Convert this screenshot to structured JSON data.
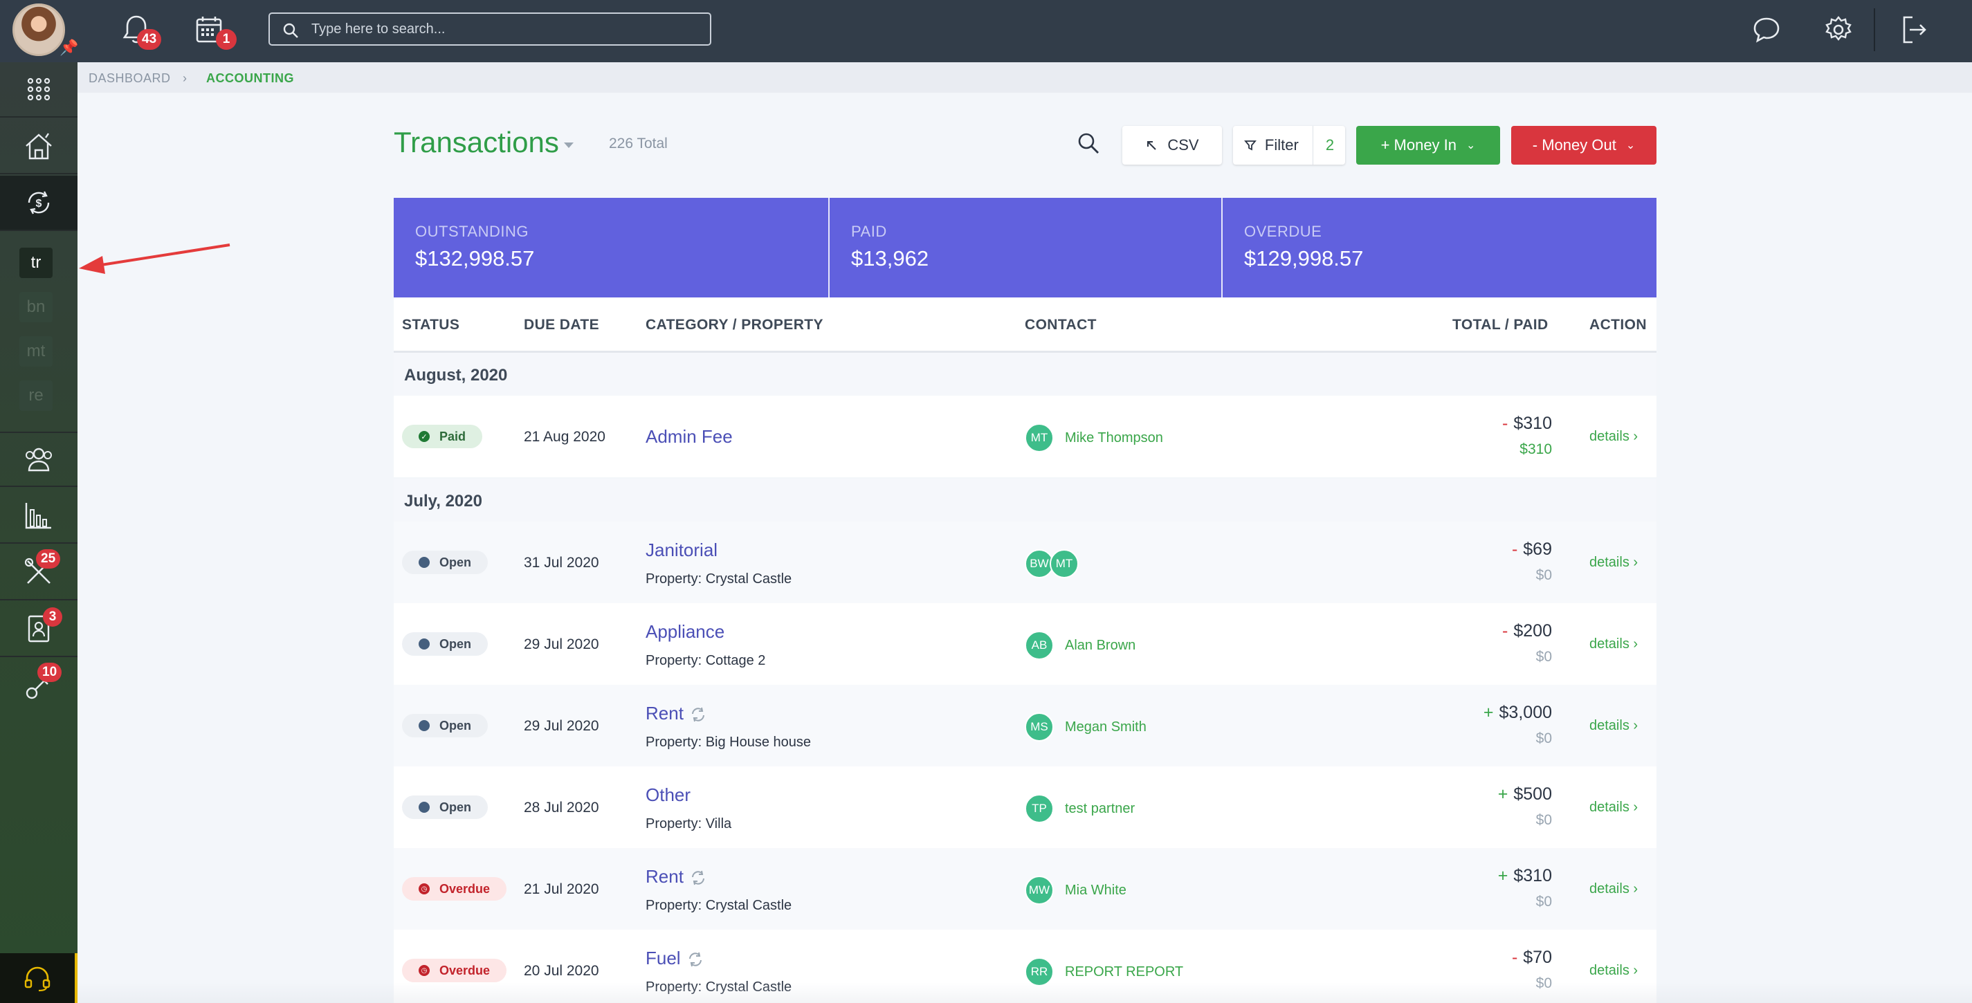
{
  "topbar": {
    "notifications_badge": "43",
    "calendar_badge": "1",
    "search_placeholder": "Type here to search..."
  },
  "sidebar": {
    "sub_items": [
      "tr",
      "bn",
      "mt",
      "re"
    ],
    "badges": {
      "tools": "25",
      "contacts": "3",
      "keys": "10"
    }
  },
  "breadcrumb": {
    "root": "DASHBOARD",
    "current": "ACCOUNTING"
  },
  "header": {
    "title": "Transactions",
    "total": "226 Total",
    "csv_label": "CSV",
    "filter_label": "Filter",
    "filter_count": "2",
    "money_in_label": "+ Money In",
    "money_out_label": "- Money Out"
  },
  "summary": {
    "outstanding_label": "OUTSTANDING",
    "outstanding_value": "$132,998.57",
    "paid_label": "PAID",
    "paid_value": "$13,962",
    "overdue_label": "OVERDUE",
    "overdue_value": "$129,998.57"
  },
  "table": {
    "columns": {
      "status": "STATUS",
      "due": "DUE DATE",
      "category": "CATEGORY / PROPERTY",
      "contact": "CONTACT",
      "total": "TOTAL / PAID",
      "action": "ACTION"
    },
    "groups": [
      "August, 2020",
      "July, 2020"
    ],
    "rows": [
      {
        "status": "Paid",
        "due": "21 Aug 2020",
        "category": "Admin Fee",
        "property": "",
        "contacts": [
          "MT"
        ],
        "contact_name": "Mike Thompson",
        "sign": "-",
        "total": "$310",
        "paid": "$310",
        "action": "details"
      },
      {
        "status": "Open",
        "due": "31 Jul 2020",
        "category": "Janitorial",
        "property": "Property: Crystal Castle",
        "contacts": [
          "BW",
          "MT"
        ],
        "contact_name": "",
        "sign": "-",
        "total": "$69",
        "paid": "$0",
        "action": "details"
      },
      {
        "status": "Open",
        "due": "29 Jul 2020",
        "category": "Appliance",
        "property": "Property: Cottage 2",
        "contacts": [
          "AB"
        ],
        "contact_name": "Alan Brown",
        "sign": "-",
        "total": "$200",
        "paid": "$0",
        "action": "details"
      },
      {
        "status": "Open",
        "due": "29 Jul 2020",
        "category": "Rent",
        "property": "Property: Big House house",
        "contacts": [
          "MS"
        ],
        "contact_name": "Megan Smith",
        "sign": "+",
        "total": "$3,000",
        "paid": "$0",
        "action": "details"
      },
      {
        "status": "Open",
        "due": "28 Jul 2020",
        "category": "Other",
        "property": "Property: Villa",
        "contacts": [
          "TP"
        ],
        "contact_name": "test partner",
        "sign": "+",
        "total": "$500",
        "paid": "$0",
        "action": "details"
      },
      {
        "status": "Overdue",
        "due": "21 Jul 2020",
        "category": "Rent",
        "property": "Property: Crystal Castle",
        "contacts": [
          "MW"
        ],
        "contact_name": "Mia White",
        "sign": "+",
        "total": "$310",
        "paid": "$0",
        "action": "details"
      },
      {
        "status": "Overdue",
        "due": "20 Jul 2020",
        "category": "Fuel",
        "property": "Property: Crystal Castle",
        "contacts": [
          "RR"
        ],
        "contact_name": "REPORT REPORT",
        "sign": "-",
        "total": "$70",
        "paid": "$0",
        "action": "details"
      }
    ]
  },
  "colors": {
    "accent_green": "#3aa64a",
    "accent_red": "#d9363e",
    "summary_bg": "#6161de",
    "topbar_bg": "#323d49"
  }
}
